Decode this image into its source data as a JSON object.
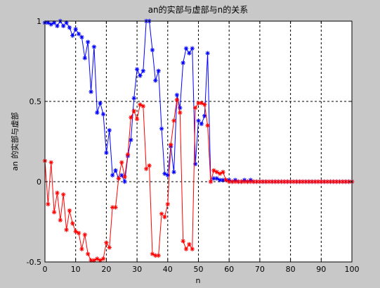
{
  "chart_data": {
    "type": "line",
    "title": "an的实部与虚部与n的关系",
    "xlabel": "n",
    "ylabel": "an 的实部与虚部",
    "xlim": [
      0,
      100
    ],
    "ylim": [
      -0.5,
      1
    ],
    "xticks": [
      "0",
      "10",
      "20",
      "30",
      "40",
      "50",
      "60",
      "70",
      "80",
      "90",
      "100"
    ],
    "yticks": [
      "-0.5",
      "0",
      "0.5",
      "1"
    ],
    "grid": true,
    "marker": "*",
    "x": [
      0,
      1,
      2,
      3,
      4,
      5,
      6,
      7,
      8,
      9,
      10,
      11,
      12,
      13,
      14,
      15,
      16,
      17,
      18,
      19,
      20,
      21,
      22,
      23,
      24,
      25,
      26,
      27,
      28,
      29,
      30,
      31,
      32,
      33,
      34,
      35,
      36,
      37,
      38,
      39,
      40,
      41,
      42,
      43,
      44,
      45,
      46,
      47,
      48,
      49,
      50,
      51,
      52,
      53,
      54,
      55,
      56,
      57,
      58,
      59,
      60,
      61,
      62,
      63,
      64,
      65,
      66,
      67,
      68,
      69,
      70,
      71,
      72,
      73,
      74,
      75,
      76,
      77,
      78,
      79,
      80,
      81,
      82,
      83,
      84,
      85,
      86,
      87,
      88,
      89,
      90,
      91,
      92,
      93,
      94,
      95,
      96,
      97,
      98,
      99,
      100
    ],
    "series": [
      {
        "color": "#0000ff",
        "values": [
          0.99,
          0.99,
          0.98,
          0.99,
          0.97,
          1.0,
          0.97,
          0.99,
          0.96,
          0.91,
          0.95,
          0.92,
          0.9,
          0.77,
          0.87,
          0.56,
          0.84,
          0.43,
          0.49,
          0.42,
          0.18,
          0.32,
          0.04,
          0.07,
          0.02,
          0.04,
          0.0,
          0.16,
          0.26,
          0.52,
          0.7,
          0.66,
          0.69,
          1.0,
          1.0,
          0.82,
          0.63,
          0.69,
          0.33,
          0.05,
          0.04,
          0.22,
          0.06,
          0.54,
          0.46,
          0.74,
          0.83,
          0.8,
          0.83,
          0.11,
          0.38,
          0.36,
          0.41,
          0.8,
          0.0,
          0.02,
          0.02,
          0.01,
          0.01,
          0.01,
          0.01,
          0.0,
          0.01,
          0.0,
          0.0,
          0.01,
          0.0,
          0.01,
          0.0,
          0.0,
          0.0,
          0.0,
          0.0,
          0.0,
          0.0,
          0.0,
          0.0,
          0.0,
          0.0,
          0.0,
          0.0,
          0.0,
          0.0,
          0.0,
          0.0,
          0.0,
          0.0,
          0.0,
          0.0,
          0.0,
          0.0,
          0.0,
          0.0,
          0.0,
          0.0,
          0.0,
          0.0,
          0.0,
          0.0,
          0.0,
          0.0
        ]
      },
      {
        "color": "#ff0000",
        "values": [
          0.13,
          -0.14,
          0.12,
          -0.19,
          -0.07,
          -0.24,
          -0.08,
          -0.3,
          -0.18,
          -0.26,
          -0.31,
          -0.32,
          -0.42,
          -0.33,
          -0.45,
          -0.49,
          -0.49,
          -0.48,
          -0.49,
          -0.48,
          -0.38,
          -0.41,
          -0.16,
          -0.16,
          0.02,
          0.12,
          0.03,
          0.17,
          0.4,
          0.44,
          0.39,
          0.48,
          0.47,
          0.08,
          0.1,
          -0.45,
          -0.46,
          -0.46,
          -0.2,
          -0.22,
          -0.14,
          0.23,
          0.38,
          0.51,
          0.43,
          -0.37,
          -0.42,
          -0.39,
          -0.42,
          0.46,
          0.49,
          0.49,
          0.48,
          0.35,
          0.0,
          0.07,
          0.06,
          0.05,
          0.06,
          0.01,
          0.0,
          0.0,
          0.0,
          0.0,
          0.0,
          0.0,
          0.0,
          0.0,
          0.0,
          0.0,
          0.0,
          0.0,
          0.0,
          0.0,
          0.0,
          0.0,
          0.0,
          0.0,
          0.0,
          0.0,
          0.0,
          0.0,
          0.0,
          0.0,
          0.0,
          0.0,
          0.0,
          0.0,
          0.0,
          0.0,
          0.0,
          0.0,
          0.0,
          0.0,
          0.0,
          0.0,
          0.0,
          0.0,
          0.0,
          0.0,
          0.0
        ]
      }
    ]
  }
}
